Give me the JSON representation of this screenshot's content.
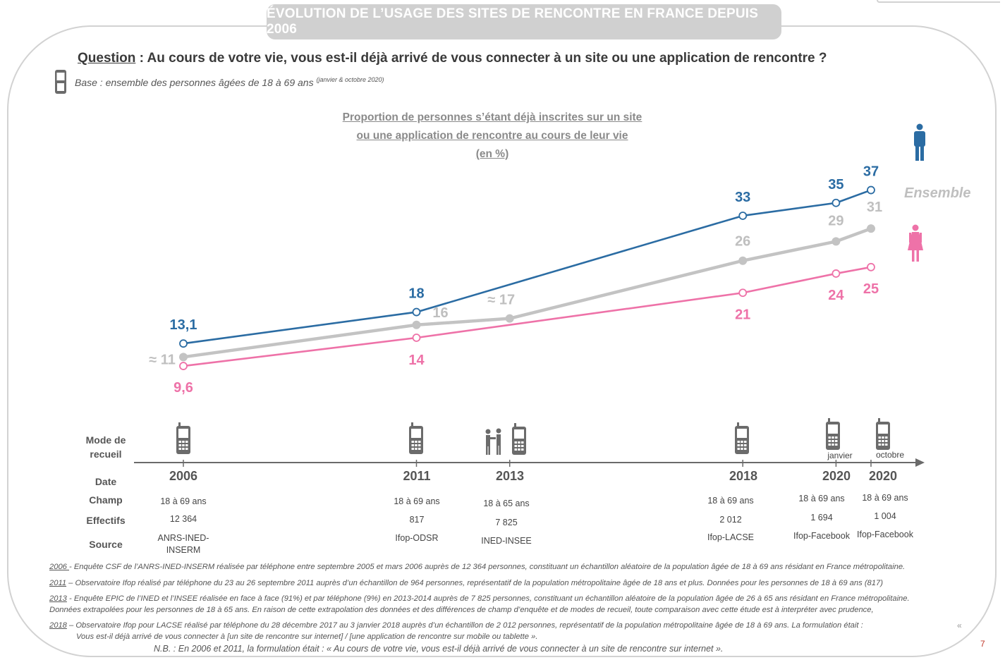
{
  "header": {
    "title": "ÉVOLUTION DE L’USAGE DES SITES DE RENCONTRE EN FRANCE DEPUIS 2006"
  },
  "question": {
    "label": "Question",
    "text": " : Au cours de votre vie, vous est-il déjà arrivé de vous connecter à un site ou une application de rencontre ?"
  },
  "base": {
    "text": "Base : ensemble des personnes âgées de 18 à 69 ans ",
    "note": "(janvier & octobre 2020)"
  },
  "chart_data": {
    "type": "line",
    "title_lines": [
      "Proportion de personnes s’étant déjà inscrites sur un site",
      "ou une application de rencontre  au cours de leur vie",
      "(en %)"
    ],
    "x_positions": [
      2006,
      2011,
      2013,
      2018,
      2020.0,
      2020.75
    ],
    "x": [
      "2006",
      "2011",
      "2013",
      "2018",
      "2020",
      "2020"
    ],
    "ylim": [
      8,
      38
    ],
    "series": [
      {
        "name": "Hommes",
        "color": "#2b6ca3",
        "marker": "open",
        "x": [
          2006,
          2011,
          2018,
          2020.0,
          2020.75
        ],
        "values": [
          13.1,
          18,
          33,
          35,
          37
        ],
        "labels": [
          "13,1",
          "18",
          "33",
          "35",
          "37"
        ]
      },
      {
        "name": "Ensemble",
        "color": "#c3c3c3",
        "marker": "filled",
        "x": [
          2006,
          2011,
          2013,
          2018,
          2020.0,
          2020.75
        ],
        "values": [
          11,
          16,
          17,
          26,
          29,
          31
        ],
        "labels": [
          "≈ 11",
          "16",
          "≈ 17",
          "26",
          "29",
          "31"
        ]
      },
      {
        "name": "Femmes",
        "color": "#ee72a8",
        "marker": "open",
        "x": [
          2006,
          2011,
          2018,
          2020.0,
          2020.75
        ],
        "values": [
          9.6,
          14,
          21,
          24,
          25
        ],
        "labels": [
          "9,6",
          "14",
          "21",
          "24",
          "25"
        ]
      }
    ],
    "legend": {
      "ensemble_label": "Ensemble"
    },
    "grid": false
  },
  "table": {
    "row_labels": {
      "mode": "Mode de\nrecueil",
      "date": "Date",
      "champ": "Champ",
      "effectifs": "Effectifs",
      "source": "Source"
    },
    "columns": [
      {
        "year": "2006",
        "month": "",
        "mode": "phone",
        "champ": "18 à 69 ans",
        "effectifs": "12 364",
        "source": "ANRS-INED-\nINSERM"
      },
      {
        "year": "2011",
        "month": "",
        "mode": "phone",
        "champ": "18 à 69 ans",
        "effectifs": "817",
        "source": "Ifop-ODSR"
      },
      {
        "year": "2013",
        "month": "",
        "mode": "face+phone",
        "champ": "18 à 65 ans",
        "effectifs": "7 825",
        "source": "INED-INSEE"
      },
      {
        "year": "2018",
        "month": "",
        "mode": "phone",
        "champ": "18 à 69 ans",
        "effectifs": "2 012",
        "source": "Ifop-LACSE"
      },
      {
        "year": "2020",
        "month": "janvier",
        "mode": "phone",
        "champ": "18 à 69 ans",
        "effectifs": "1 694",
        "source": "Ifop-Facebook"
      },
      {
        "year": "2020",
        "month": "octobre",
        "mode": "phone",
        "champ": "18 à 69 ans",
        "effectifs": "1 004",
        "source": "Ifop-Facebook"
      }
    ]
  },
  "notes": [
    {
      "key": "2006 ",
      "text": "- Enquête CSF de l’ANRS-INED-INSERM réalisée par téléphone entre septembre 2005 et mars 2006 auprès de 12 364 personnes, constituant un échantillon aléatoire de la population âgée de 18 à 69 ans résidant en France métropolitaine."
    },
    {
      "key": "2011",
      "text": " – Observatoire Ifop réalisé par téléphone du 23 au 26 septembre 2011  auprès d’un échantillon de 964 personnes, représentatif de la population métropolitaine âgée de 18 ans et plus. Données pour les personnes de 18 à 69 ans (817)"
    },
    {
      "key": "2013",
      "text": " - Enquête EPIC de l’INED et l’INSEE réalisée en face à face (91%) et par téléphone (9%) en 2013-2014 auprès de 7 825 personnes, constituant un échantillon aléatoire de la population âgée de 26 à 65 ans résidant en France métropolitaine.",
      "line2": "Données extrapolées pour les personnes de 18 à 65 ans. En raison de cette extrapolation des données et des différences de champ d’enquête et de modes de recueil, toute comparaison avec cette étude est à interpréter avec prudence,"
    },
    {
      "key": "2018",
      "text": " – Observatoire Ifop pour LACSE réalisé par téléphone du 28 décembre 2017 au 3 janvier 2018 auprès d’un échantillon de 2 012 personnes, représentatif de la population métropolitaine âgée de 18 à 69 ans. La formulation était :",
      "line2": "Vous est-il déjà arrivé de vous connecter à [un site de rencontre sur internet] / [une application de rencontre sur mobile ou tablette »."
    }
  ],
  "nb": "N.B. : En 2006 et 2011, la formulation était : « Au cours de votre vie, vous est-il déjà arrivé de vous connecter à un site de rencontre sur internet ».",
  "quote_mark": "«",
  "page_number": "7"
}
